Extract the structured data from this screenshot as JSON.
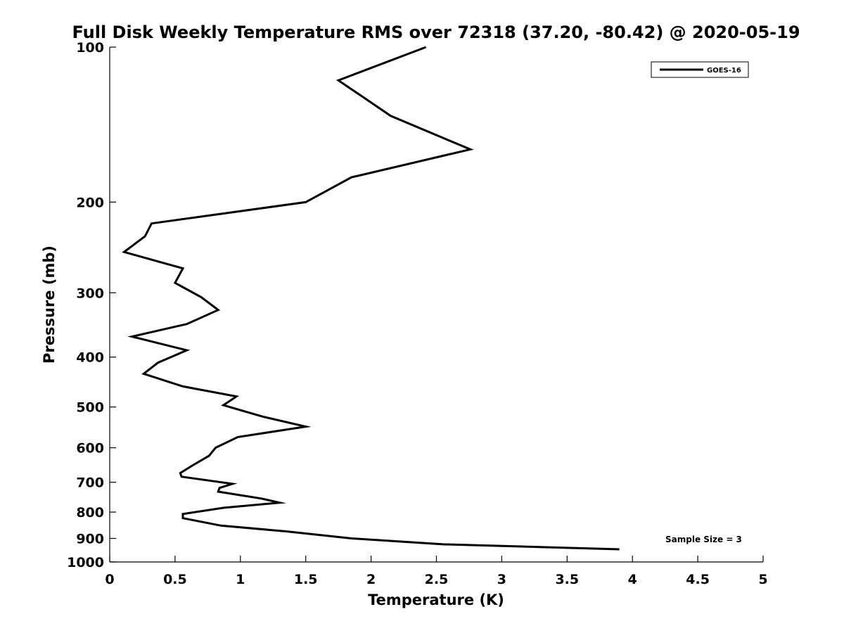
{
  "chart_data": {
    "type": "line",
    "title": "Full Disk Weekly Temperature RMS over 72318 (37.20, -80.42) @ 2020-05-19",
    "xlabel": "Temperature (K)",
    "ylabel": "Pressure (mb)",
    "xlim": [
      0,
      5
    ],
    "ylim": [
      1000,
      100
    ],
    "yscale": "log",
    "x_ticks": [
      0,
      0.5,
      1,
      1.5,
      2,
      2.5,
      3,
      3.5,
      4,
      4.5,
      5
    ],
    "x_tick_labels": [
      "0",
      "0.5",
      "1",
      "1.5",
      "2",
      "2.5",
      "3",
      "3.5",
      "4",
      "4.5",
      "5"
    ],
    "y_ticks": [
      100,
      200,
      300,
      400,
      500,
      600,
      700,
      800,
      900,
      1000
    ],
    "y_tick_labels": [
      "100",
      "200",
      "300",
      "400",
      "500",
      "600",
      "700",
      "800",
      "900",
      "1000"
    ],
    "grid": false,
    "legend_position": "top-right",
    "annotation": "Sample Size = 3",
    "series": [
      {
        "name": "GOES-16",
        "color": "#000000",
        "x": [
          2.42,
          1.75,
          2.15,
          2.76,
          1.85,
          1.5,
          0.32,
          0.27,
          0.11,
          0.56,
          0.5,
          0.7,
          0.83,
          0.59,
          0.17,
          0.59,
          0.37,
          0.26,
          0.56,
          0.97,
          0.87,
          1.17,
          1.5,
          0.98,
          0.81,
          0.76,
          0.63,
          0.54,
          0.55,
          0.94,
          0.84,
          0.83,
          1.16,
          1.3,
          0.87,
          0.56,
          0.56,
          0.85,
          1.35,
          1.85,
          2.55,
          3.9
        ],
        "y": [
          100,
          116,
          136,
          158,
          179,
          200,
          220,
          233,
          250,
          269,
          287,
          306,
          324,
          345,
          365,
          388,
          410,
          431,
          456,
          477,
          496,
          522,
          546,
          572,
          600,
          622,
          650,
          672,
          683,
          705,
          718,
          730,
          753,
          767,
          785,
          807,
          822,
          850,
          872,
          900,
          924,
          945
        ]
      }
    ]
  }
}
